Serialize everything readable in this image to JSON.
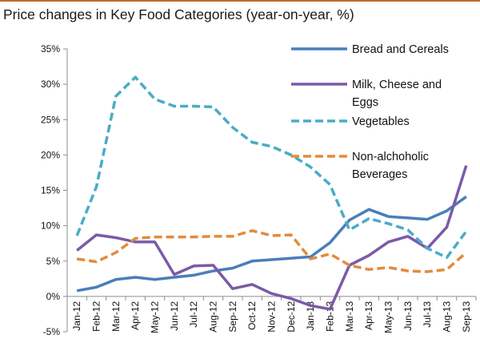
{
  "chart_data": {
    "type": "line",
    "title": "Price changes in Key Food Categories (year-on-year, %)",
    "xlabel": "",
    "ylabel": "",
    "categories": [
      "Jan-12",
      "Feb-12",
      "Mar-12",
      "Apr-12",
      "May-12",
      "Jun-12",
      "Jul-12",
      "Aug-12",
      "Sep-12",
      "Oct-12",
      "Nov-12",
      "Dec-12",
      "Jan-13",
      "Feb-13",
      "Mar-13",
      "Apr-13",
      "May-13",
      "Jun-13",
      "Jul-13",
      "Aug-13",
      "Sep-13"
    ],
    "ylim": [
      -5,
      35
    ],
    "yticks": [
      -5,
      0,
      5,
      10,
      15,
      20,
      25,
      30,
      35
    ],
    "ytick_labels": [
      "-5%",
      "0%",
      "5%",
      "10%",
      "15%",
      "20%",
      "25%",
      "30%",
      "35%"
    ],
    "grid": false,
    "legend_position": "top-right",
    "series": [
      {
        "name": "Bread and Cereals",
        "color": "#4a7ebb",
        "style": "solid",
        "values": [
          0.8,
          1.3,
          2.4,
          2.7,
          2.4,
          2.7,
          3.0,
          3.6,
          4.0,
          5.0,
          5.2,
          5.4,
          5.6,
          7.6,
          10.8,
          12.3,
          11.3,
          11.1,
          10.9,
          12.1,
          14.1
        ]
      },
      {
        "name": "Milk, Cheese and Eggs",
        "color": "#7b5aa6",
        "style": "solid",
        "values": [
          6.5,
          8.7,
          8.3,
          7.7,
          7.7,
          3.1,
          4.3,
          4.4,
          1.1,
          1.7,
          0.4,
          -0.3,
          -1.3,
          -1.8,
          4.4,
          5.8,
          7.7,
          8.5,
          6.8,
          9.8,
          18.5
        ]
      },
      {
        "name": "Vegetables",
        "color": "#4aacc6",
        "style": "dashed",
        "values": [
          8.6,
          15.5,
          28.3,
          31.0,
          27.9,
          26.9,
          26.9,
          26.8,
          23.9,
          21.8,
          21.2,
          20.0,
          18.3,
          15.8,
          9.4,
          11.0,
          10.3,
          9.4,
          6.8,
          5.5,
          9.2
        ]
      },
      {
        "name": "Non-alchoholic Beverages",
        "color": "#e38b3c",
        "style": "dashed",
        "values": [
          5.3,
          4.9,
          6.2,
          8.2,
          8.4,
          8.4,
          8.4,
          8.5,
          8.5,
          9.3,
          8.6,
          8.7,
          5.3,
          6.0,
          4.4,
          3.8,
          4.1,
          3.6,
          3.5,
          3.8,
          6.2
        ]
      }
    ],
    "legend": [
      {
        "series": 0,
        "lines": [
          "Bread and Cereals"
        ]
      },
      {
        "series": 1,
        "lines": [
          "Milk, Cheese and",
          "Eggs"
        ]
      },
      {
        "series": 2,
        "lines": [
          "Vegetables"
        ]
      },
      {
        "series": 3,
        "lines": [
          "Non-alchoholic",
          "Beverages"
        ]
      }
    ]
  }
}
